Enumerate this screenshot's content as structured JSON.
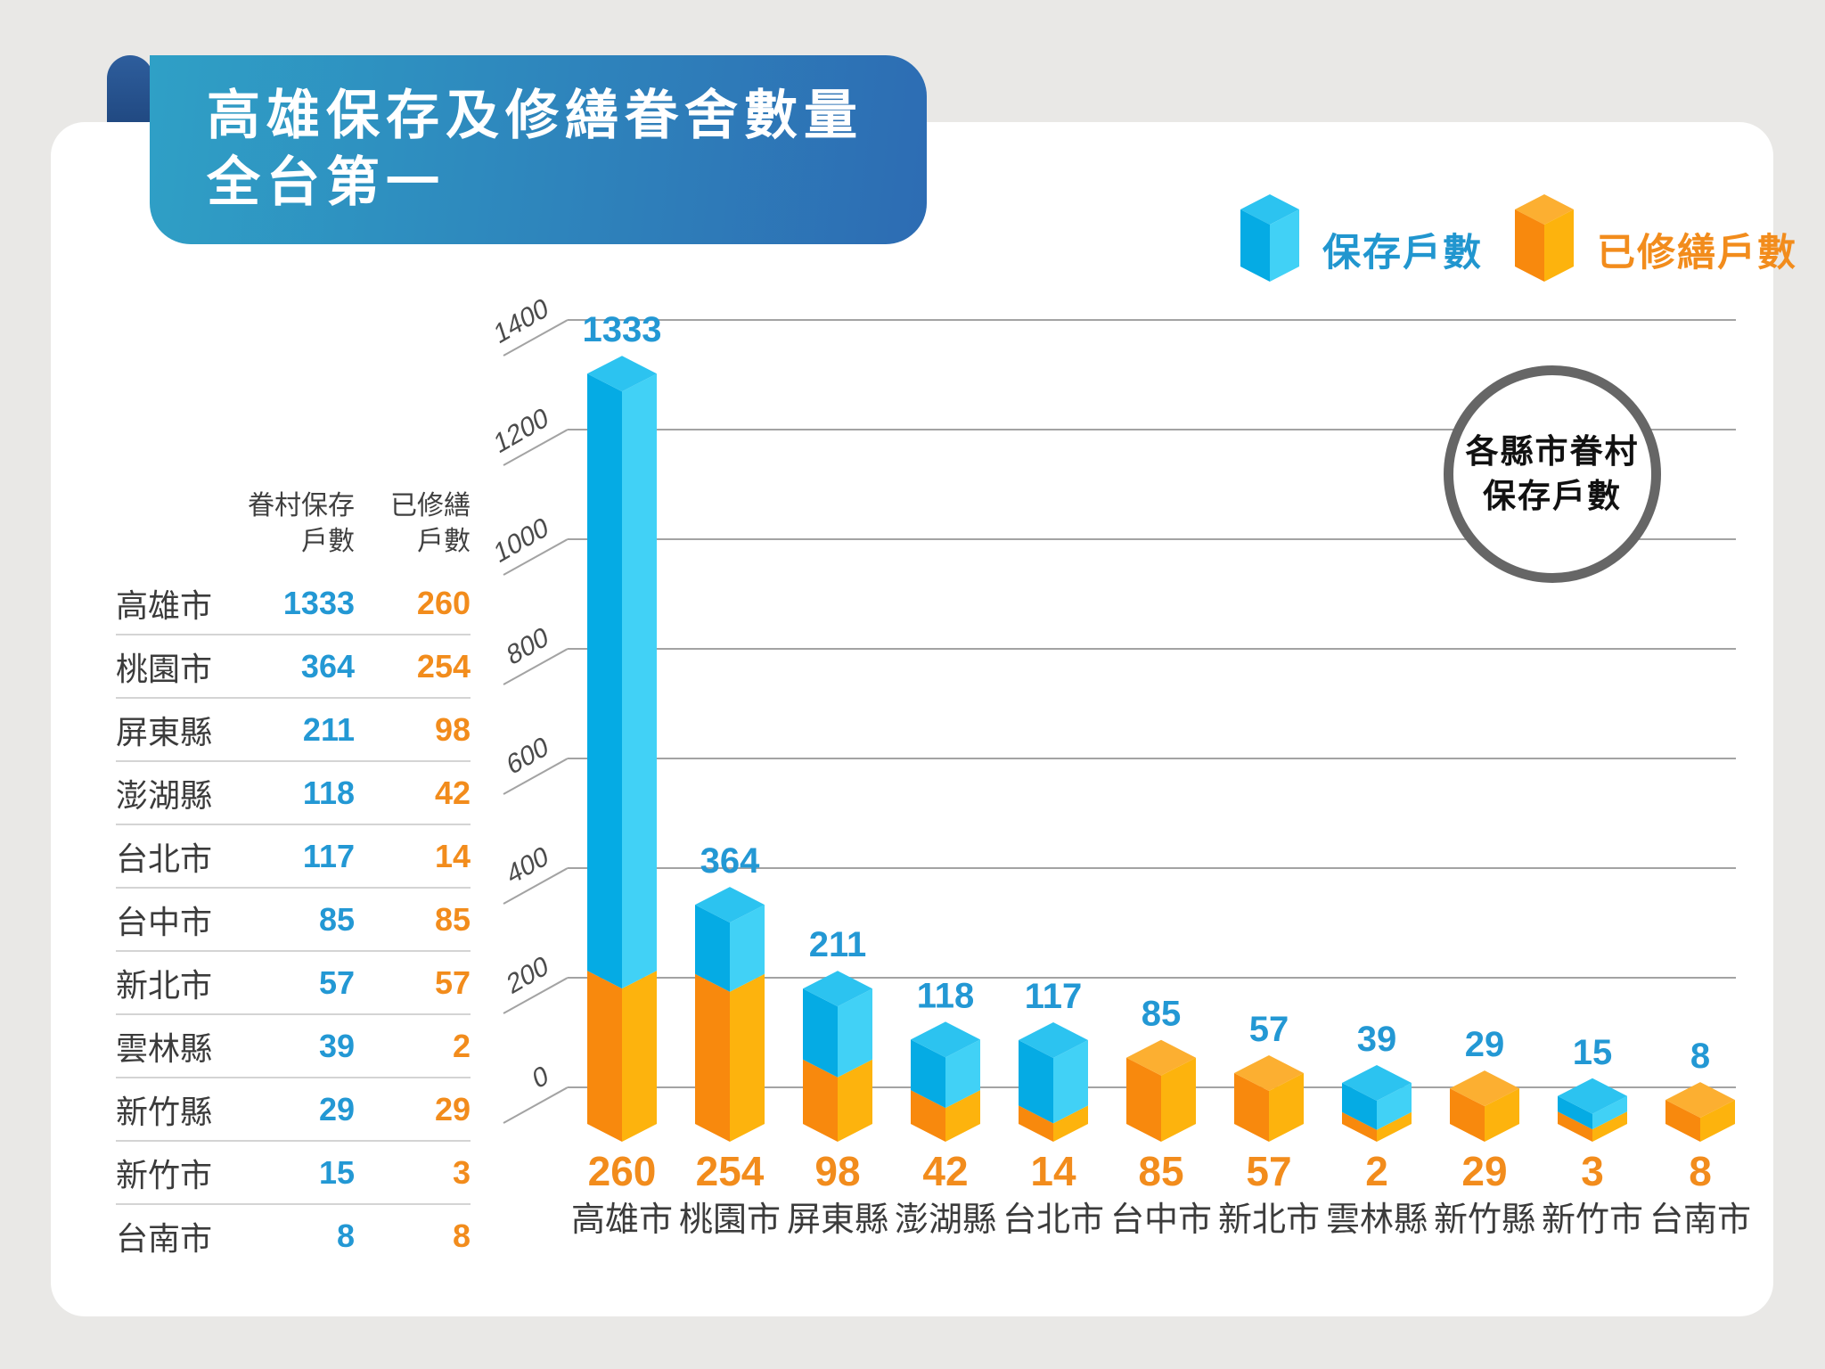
{
  "banner": {
    "title_line1": "高雄保存及修繕眷舍數量",
    "title_line2": "全台第一"
  },
  "legend": {
    "items": [
      {
        "label": "保存戶數",
        "color": "#2cc3f0"
      },
      {
        "label": "已修繕戶數",
        "color": "#fcaf31"
      }
    ]
  },
  "annotation": {
    "line1": "各縣市眷村",
    "line2": "保存戶數"
  },
  "table": {
    "col1_header": "眷村保存\n戶數",
    "col2_header": "已修繕\n戶數"
  },
  "chart_data": {
    "type": "bar",
    "title": "高雄保存及修繕眷舍數量全台第一",
    "annotation": "各縣市眷村保存戶數",
    "categories": [
      "高雄市",
      "桃園市",
      "屏東縣",
      "澎湖縣",
      "台北市",
      "台中市",
      "新北市",
      "雲林縣",
      "新竹縣",
      "新竹市",
      "台南市"
    ],
    "series": [
      {
        "name": "保存戶數",
        "values": [
          1333,
          364,
          211,
          118,
          117,
          85,
          57,
          39,
          29,
          15,
          8
        ]
      },
      {
        "name": "已修繕戶數",
        "values": [
          260,
          254,
          98,
          42,
          14,
          85,
          57,
          2,
          29,
          3,
          8
        ]
      }
    ],
    "yticks": [
      0,
      200,
      400,
      600,
      800,
      1000,
      1200,
      1400
    ],
    "ylim": [
      0,
      1400
    ],
    "grid": true,
    "legend_position": "top-right",
    "colors": {
      "blue_left": "#05abe4",
      "blue_right": "#41d1f6",
      "blue_top": "#2cc3f0",
      "orange_left": "#f8890d",
      "orange_right": "#fdb30d",
      "orange_top": "#fcaf31",
      "blue_label": "#2398d4",
      "orange_label": "#f28c1c",
      "city_label": "#3b3b3b",
      "tick_label": "#4b4b4b",
      "gridline": "#a3a3a3"
    }
  }
}
